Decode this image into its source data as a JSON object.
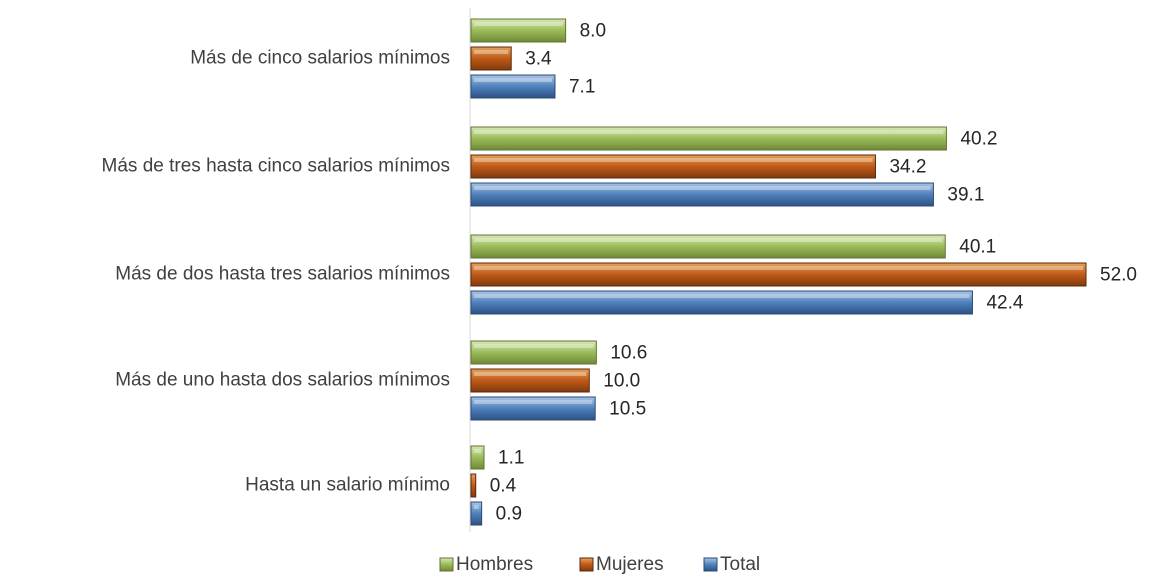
{
  "chart_data": {
    "type": "bar",
    "orientation": "horizontal",
    "categories": [
      "Más de cinco salarios mínimos",
      "Más de tres hasta cinco salarios mínimos",
      "Más de dos hasta tres salarios mínimos",
      "Más de uno hasta dos salarios mínimos",
      "Hasta un salario mínimo"
    ],
    "series": [
      {
        "name": "Hombres",
        "color": "#9bbb59",
        "values": [
          8.0,
          40.2,
          40.1,
          10.6,
          1.1
        ]
      },
      {
        "name": "Mujeres",
        "color": "#c0504d",
        "values": [
          3.4,
          34.2,
          52.0,
          10.0,
          0.4
        ]
      },
      {
        "name": "Total",
        "color": "#4f81bd",
        "values": [
          7.1,
          39.1,
          42.4,
          10.5,
          0.9
        ]
      }
    ],
    "title": "",
    "xlabel": "",
    "ylabel": "",
    "xlim": [
      0,
      52
    ],
    "grid": false,
    "legend": "bottom-center",
    "data_labels": true,
    "value_format": "one-decimal"
  }
}
